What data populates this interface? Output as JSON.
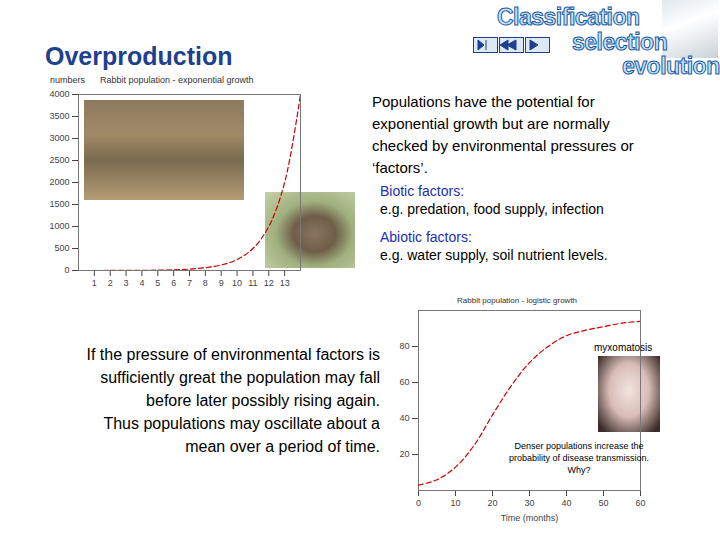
{
  "slide": {
    "title": "Overproduction",
    "logo": [
      "Classification",
      "selection",
      "evolution"
    ],
    "intro_lines": [
      "Populations have the potential for",
      "exponential growth but are normally",
      "checked by environmental pressures or",
      "‘factors’."
    ],
    "factors": [
      {
        "heading": "Biotic factors:",
        "text": "e.g. predation, food supply, infection"
      },
      {
        "heading": "Abiotic factors:",
        "text": "e.g. water supply, soil nutrient levels."
      }
    ],
    "oscillation_lines": [
      "If the pressure of environmental factors is",
      "sufficiently great the population may fall",
      "before later possibly rising again.",
      "Thus populations may oscillate about a",
      "mean over a period of time."
    ]
  },
  "chart_data": [
    {
      "type": "line",
      "title": "Rabbit population - exponential growth",
      "y_label": "numbers",
      "x": [
        0,
        1,
        2,
        3,
        4,
        5,
        6,
        7,
        8,
        9,
        10,
        11,
        12,
        13,
        14
      ],
      "series": [
        {
          "name": "Rabbit population",
          "color": "#cc0000",
          "line_style": "dashed",
          "values": [
            0,
            0,
            1,
            2,
            4,
            8,
            16,
            31,
            63,
            125,
            250,
            500,
            1000,
            2000,
            4000
          ]
        }
      ],
      "xlim": [
        0,
        14
      ],
      "xticks": [
        1,
        2,
        3,
        4,
        5,
        6,
        7,
        8,
        9,
        10,
        11,
        12,
        13
      ],
      "ylim": [
        0,
        4000
      ],
      "yticks": [
        0,
        500,
        1000,
        1500,
        2000,
        2500,
        3000,
        3500,
        4000
      ],
      "grid": false
    },
    {
      "type": "line",
      "title": "Rabbit population - logistic growth",
      "x_label": "Time (months)",
      "x": [
        0,
        5,
        10,
        15,
        20,
        25,
        30,
        35,
        40,
        45,
        50,
        55,
        60
      ],
      "series": [
        {
          "name": "Rabbit population",
          "color": "#cc0000",
          "line_style": "dashed",
          "values": [
            3,
            6,
            13,
            25,
            42,
            58,
            71,
            80,
            86,
            89,
            91,
            93,
            94
          ]
        }
      ],
      "xlim": [
        0,
        60
      ],
      "xticks": [
        0,
        10,
        20,
        30,
        40,
        50,
        60
      ],
      "ylim": [
        0,
        100
      ],
      "yticks": [
        20,
        40,
        60,
        80
      ],
      "grid": false,
      "annotations": [
        "myxomatosis",
        "Denser populations increase the probability of disease transmission.  Why?"
      ]
    }
  ]
}
